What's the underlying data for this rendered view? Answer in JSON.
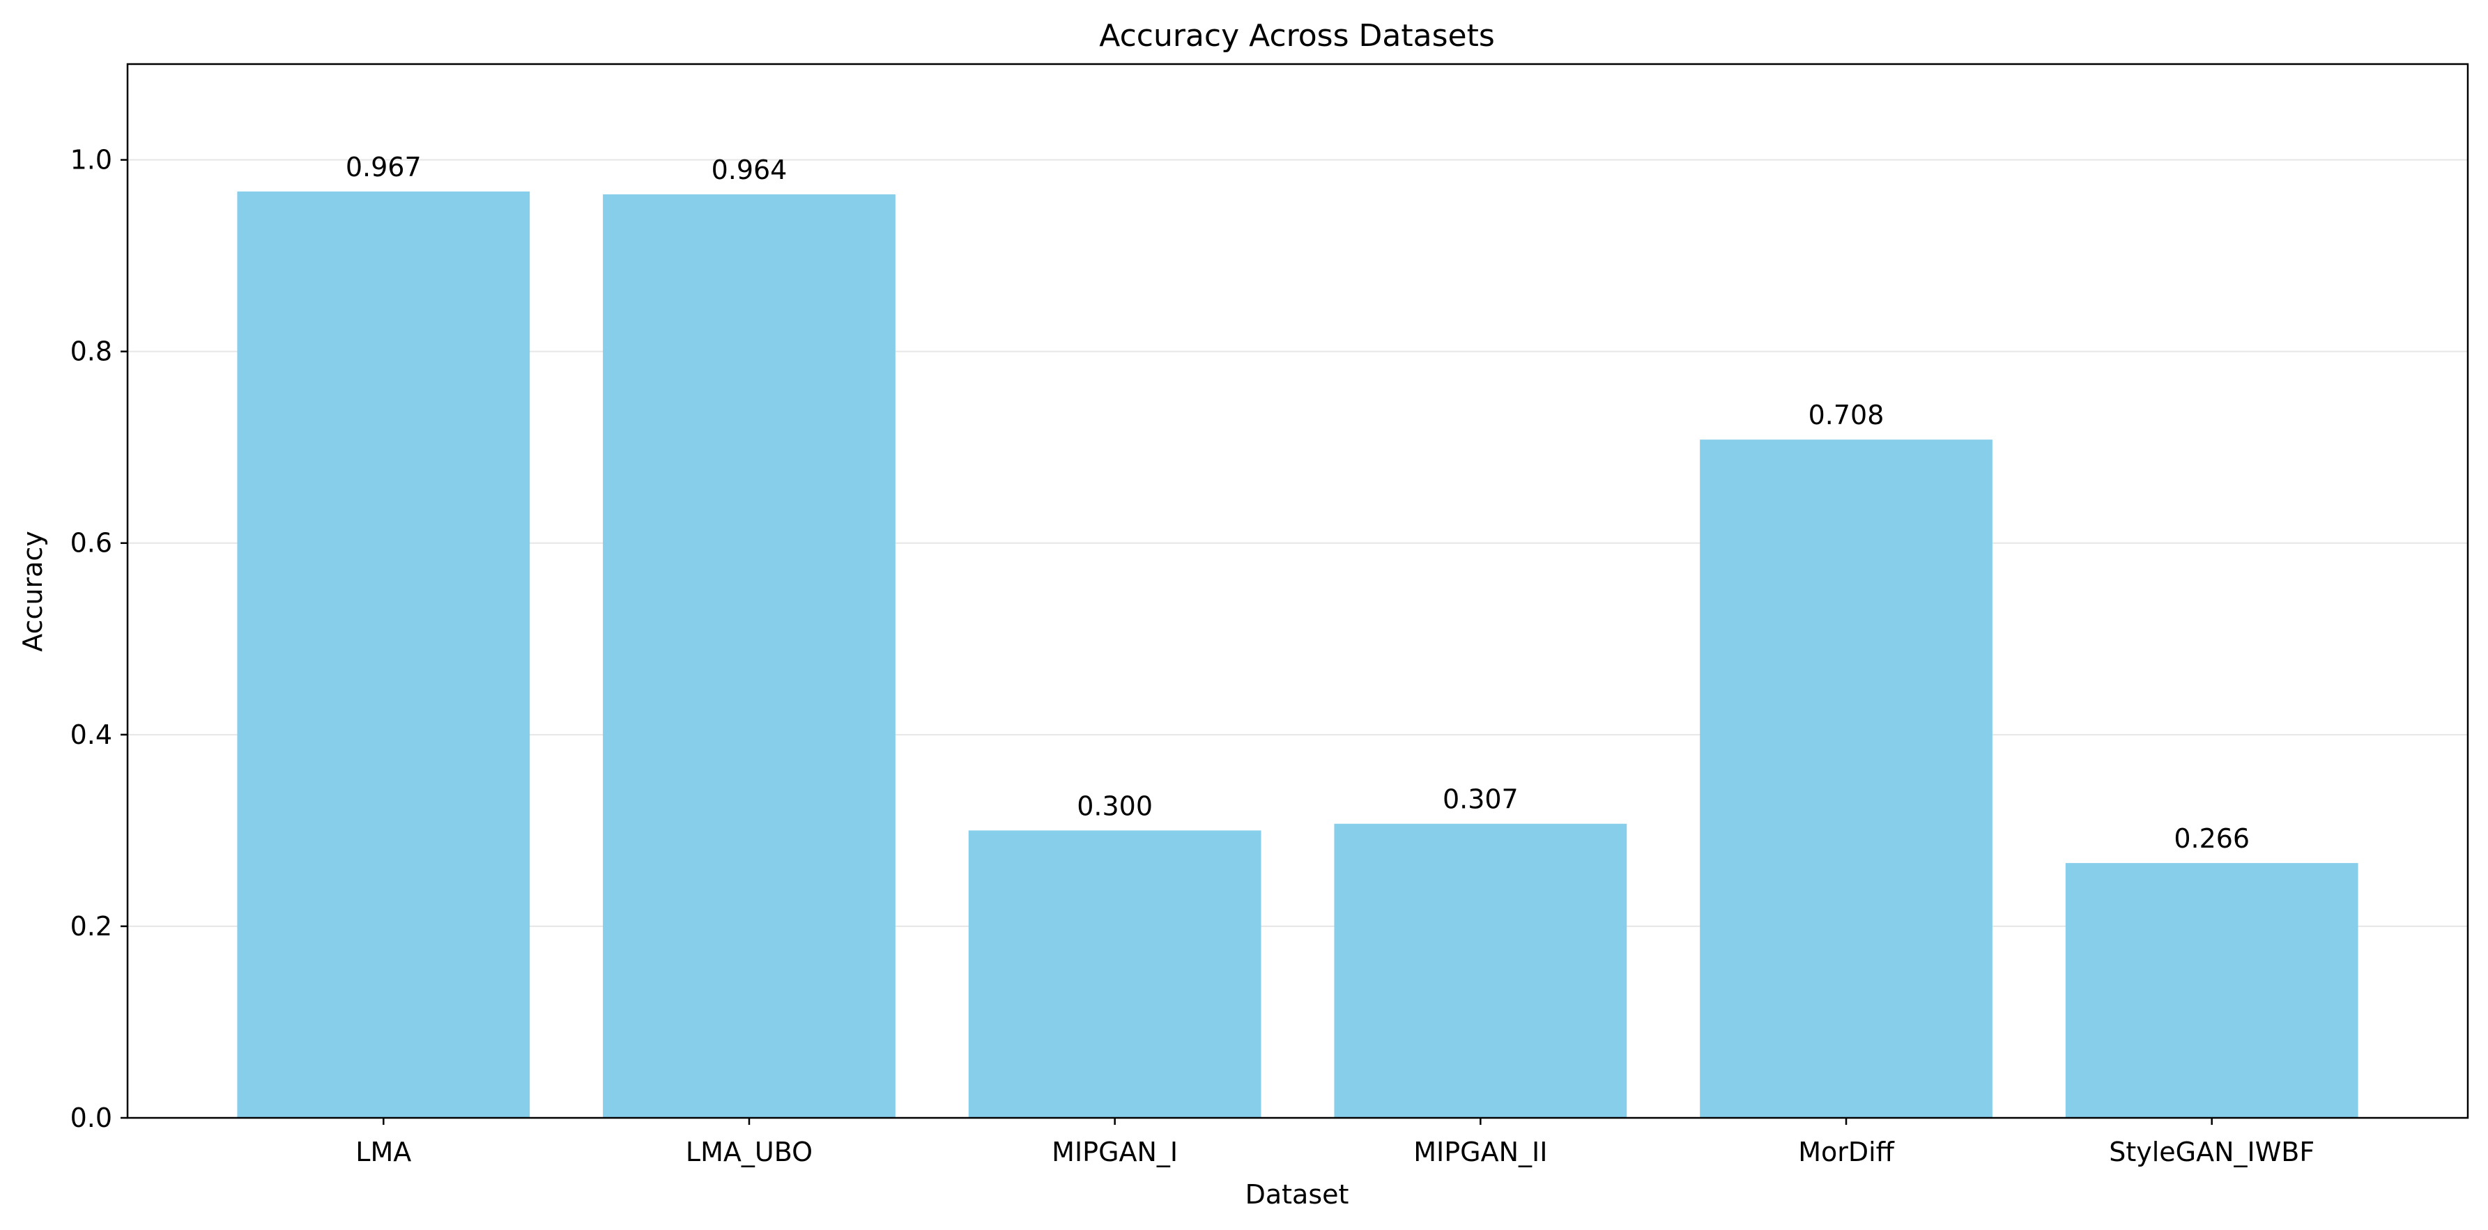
{
  "chart_data": {
    "type": "bar",
    "title": "Accuracy Across Datasets",
    "xlabel": "Dataset",
    "ylabel": "Accuracy",
    "categories": [
      "LMA",
      "LMA_UBO",
      "MIPGAN_I",
      "MIPGAN_II",
      "MorDiff",
      "StyleGAN_IWBF"
    ],
    "values": [
      0.967,
      0.964,
      0.3,
      0.307,
      0.708,
      0.266
    ],
    "value_labels": [
      "0.967",
      "0.964",
      "0.300",
      "0.307",
      "0.708",
      "0.266"
    ],
    "ylim": [
      0,
      1.1
    ],
    "yticks": [
      0.0,
      0.2,
      0.4,
      0.6,
      0.8,
      1.0
    ],
    "ytick_labels": [
      "0.0",
      "0.2",
      "0.4",
      "0.6",
      "0.8",
      "1.0"
    ],
    "grid": "horizontal",
    "legend": "none",
    "colors": {
      "bar": "#87ceeb",
      "grid": "#e6e6e6",
      "axis": "#000000",
      "background": "#ffffff"
    }
  }
}
